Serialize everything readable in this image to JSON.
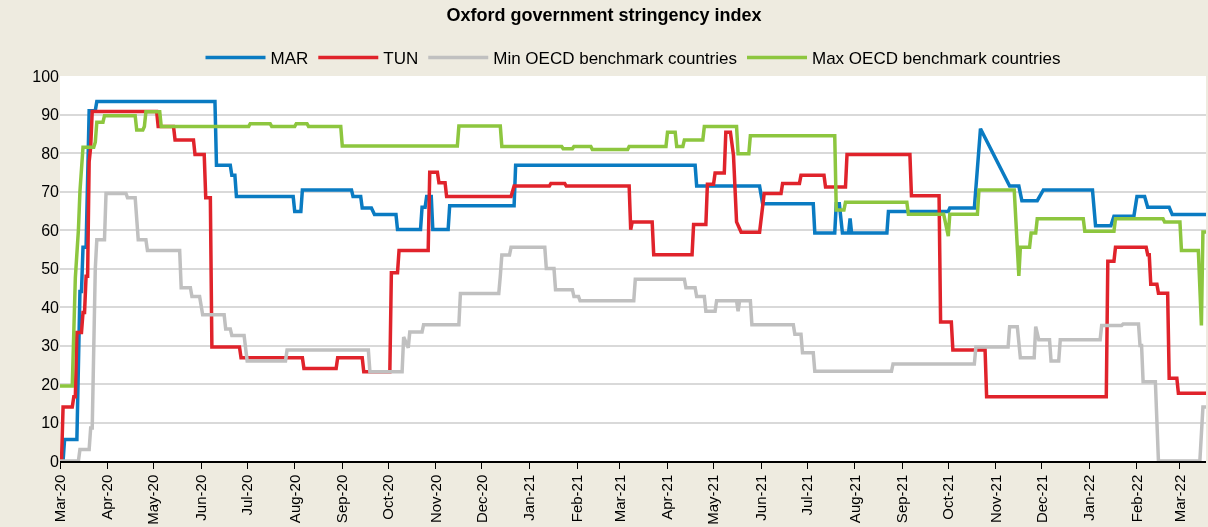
{
  "chart_data": {
    "type": "line",
    "title": "Oxford government stringency index",
    "xlim": [
      "2020-03-01",
      "2022-03-18"
    ],
    "xticks": [
      {
        "value": "2020-03-01",
        "label": "Mar-20"
      },
      {
        "value": "2020-04-01",
        "label": "Apr-20"
      },
      {
        "value": "2020-05-01",
        "label": "May-20"
      },
      {
        "value": "2020-06-01",
        "label": "Jun-20"
      },
      {
        "value": "2020-07-01",
        "label": "Jul-20"
      },
      {
        "value": "2020-08-01",
        "label": "Aug-20"
      },
      {
        "value": "2020-09-01",
        "label": "Sep-20"
      },
      {
        "value": "2020-10-01",
        "label": "Oct-20"
      },
      {
        "value": "2020-11-01",
        "label": "Nov-20"
      },
      {
        "value": "2020-12-01",
        "label": "Dec-20"
      },
      {
        "value": "2021-01-01",
        "label": "Jan-21"
      },
      {
        "value": "2021-02-01",
        "label": "Feb-21"
      },
      {
        "value": "2021-03-01",
        "label": "Mar-21"
      },
      {
        "value": "2021-04-01",
        "label": "Apr-21"
      },
      {
        "value": "2021-05-01",
        "label": "May-21"
      },
      {
        "value": "2021-06-01",
        "label": "Jun-21"
      },
      {
        "value": "2021-07-01",
        "label": "Jul-21"
      },
      {
        "value": "2021-08-01",
        "label": "Aug-21"
      },
      {
        "value": "2021-09-01",
        "label": "Sep-21"
      },
      {
        "value": "2021-10-01",
        "label": "Oct-21"
      },
      {
        "value": "2021-11-01",
        "label": "Nov-21"
      },
      {
        "value": "2021-12-01",
        "label": "Dec-21"
      },
      {
        "value": "2022-01-01",
        "label": "Jan-22"
      },
      {
        "value": "2022-02-01",
        "label": "Feb-22"
      },
      {
        "value": "2022-03-01",
        "label": "Mar-22"
      }
    ],
    "ylim": [
      0,
      100
    ],
    "yticks": [
      0,
      10,
      20,
      30,
      40,
      50,
      60,
      70,
      80,
      90,
      100
    ],
    "grid": "y",
    "legend": "top",
    "series": [
      {
        "name": "MAR",
        "color": "#0a7bc2",
        "x": [
          "2020-03-03",
          "2020-03-04",
          "2020-03-12",
          "2020-03-14",
          "2020-03-15",
          "2020-03-16",
          "2020-03-18",
          "2020-03-20",
          "2020-03-24",
          "2020-03-25",
          "2020-06-10",
          "2020-06-11",
          "2020-06-20",
          "2020-06-21",
          "2020-06-23",
          "2020-06-24",
          "2020-07-31",
          "2020-08-01",
          "2020-08-05",
          "2020-08-06",
          "2020-09-07",
          "2020-09-08",
          "2020-09-13",
          "2020-09-14",
          "2020-09-20",
          "2020-09-22",
          "2020-10-06",
          "2020-10-07",
          "2020-10-22",
          "2020-10-23",
          "2020-10-25",
          "2020-10-26",
          "2020-10-29",
          "2020-10-30",
          "2020-11-09",
          "2020-11-10",
          "2020-12-22",
          "2020-12-23",
          "2021-04-19",
          "2021-04-20",
          "2021-05-31",
          "2021-06-02",
          "2021-07-05",
          "2021-07-06",
          "2021-07-19",
          "2021-07-20",
          "2021-07-22",
          "2021-07-24",
          "2021-07-28",
          "2021-07-29",
          "2021-07-30",
          "2021-08-22",
          "2021-08-23",
          "2021-10-01",
          "2021-10-02",
          "2021-10-18",
          "2021-10-22",
          "2021-11-10",
          "2021-11-16",
          "2021-11-18",
          "2021-11-28",
          "2021-12-02",
          "2022-01-03",
          "2022-01-05",
          "2022-01-15",
          "2022-01-17",
          "2022-01-30",
          "2022-02-01",
          "2022-02-06",
          "2022-02-08",
          "2022-02-22",
          "2022-02-24",
          "2022-03-18"
        ],
        "values": [
          0,
          5.6,
          5.6,
          44,
          44,
          55.5,
          55.5,
          91,
          91,
          93.4,
          93.4,
          76.8,
          76.8,
          74.2,
          74.2,
          68.7,
          68.7,
          64.8,
          64.8,
          70.4,
          70.4,
          68.7,
          68.7,
          65.7,
          65.7,
          64,
          64,
          60.1,
          60.1,
          65.9,
          65.9,
          68.7,
          68.7,
          60.1,
          60.1,
          66.3,
          66.3,
          76.8,
          76.8,
          71.4,
          71.4,
          66.8,
          66.8,
          59.2,
          59.2,
          66.8,
          66.8,
          59.2,
          59.2,
          63,
          59.2,
          59.2,
          64.8,
          64.8,
          65.7,
          65.7,
          86.3,
          71.4,
          71.4,
          67.6,
          67.6,
          70.4,
          70.4,
          61.1,
          61.1,
          63.6,
          63.6,
          68.7,
          68.7,
          65.9,
          65.9,
          64,
          64
        ]
      },
      {
        "name": "TUN",
        "color": "#e0232b",
        "x": [
          "2020-03-02",
          "2020-03-03",
          "2020-03-09",
          "2020-03-10",
          "2020-03-11",
          "2020-03-12",
          "2020-03-15",
          "2020-03-16",
          "2020-03-17",
          "2020-03-18",
          "2020-03-19",
          "2020-03-20",
          "2020-03-21",
          "2020-03-22",
          "2020-05-03",
          "2020-05-04",
          "2020-05-14",
          "2020-05-15",
          "2020-05-27",
          "2020-05-28",
          "2020-06-03",
          "2020-06-04",
          "2020-06-07",
          "2020-06-08",
          "2020-06-26",
          "2020-06-27",
          "2020-08-06",
          "2020-08-07",
          "2020-08-28",
          "2020-08-29",
          "2020-09-14",
          "2020-09-15",
          "2020-10-02",
          "2020-10-03",
          "2020-10-07",
          "2020-10-08",
          "2020-10-27",
          "2020-10-28",
          "2020-11-02",
          "2020-11-03",
          "2020-11-07",
          "2020-11-08",
          "2020-12-20",
          "2020-12-22",
          "2021-01-14",
          "2021-01-15",
          "2021-01-24",
          "2021-01-25",
          "2021-03-07",
          "2021-03-08",
          "2021-03-09",
          "2021-03-22",
          "2021-03-23",
          "2021-04-17",
          "2021-04-18",
          "2021-04-26",
          "2021-04-27",
          "2021-05-01",
          "2021-05-02",
          "2021-05-08",
          "2021-05-09",
          "2021-05-12",
          "2021-05-14",
          "2021-05-16",
          "2021-05-19",
          "2021-05-31",
          "2021-06-03",
          "2021-06-14",
          "2021-06-15",
          "2021-06-26",
          "2021-06-27",
          "2021-07-12",
          "2021-07-13",
          "2021-07-26",
          "2021-07-27",
          "2021-09-06",
          "2021-09-07",
          "2021-09-25",
          "2021-09-26",
          "2021-10-03",
          "2021-10-04",
          "2021-10-25",
          "2021-10-26",
          "2022-01-12",
          "2022-01-13",
          "2022-01-17",
          "2022-01-18",
          "2022-02-07",
          "2022-02-08",
          "2022-02-09",
          "2022-02-10",
          "2022-02-14",
          "2022-02-15",
          "2022-02-21",
          "2022-02-22",
          "2022-02-27",
          "2022-02-28",
          "2022-03-18"
        ],
        "values": [
          0,
          14,
          14,
          16.7,
          16.7,
          33.4,
          33.4,
          38.6,
          38.6,
          48,
          48,
          77.7,
          81.5,
          90.8,
          90.8,
          86.9,
          86.9,
          83.4,
          83.4,
          79.6,
          79.6,
          68.4,
          68.4,
          29.6,
          29.6,
          26.8,
          26.8,
          24,
          24,
          26.8,
          26.8,
          23.2,
          23.2,
          48.9,
          48.9,
          54.7,
          54.7,
          75,
          75,
          72.3,
          72.3,
          68.7,
          68.7,
          71.4,
          71.4,
          72.1,
          72.1,
          71.4,
          71.4,
          60.1,
          62.1,
          62.1,
          53.6,
          53.6,
          61.4,
          61.4,
          71.9,
          71.9,
          74.8,
          74.8,
          85.4,
          85.4,
          79.4,
          62.1,
          59.4,
          59.4,
          69.5,
          69.5,
          72.1,
          72.1,
          74.2,
          74.2,
          71.2,
          71.2,
          79.6,
          79.6,
          68.9,
          68.9,
          36.1,
          36.1,
          28.8,
          28.8,
          16.7,
          16.7,
          51.9,
          51.9,
          55.5,
          55.5,
          53.6,
          53.6,
          45.9,
          45.9,
          43.6,
          43.6,
          21.5,
          21.5,
          17.6,
          17.6
        ]
      },
      {
        "name": "Min OECD benchmark countries",
        "color": "#c0c0c0",
        "x": [
          "2020-03-01",
          "2020-03-13",
          "2020-03-14",
          "2020-03-20",
          "2020-03-21",
          "2020-03-22",
          "2020-03-24",
          "2020-03-25",
          "2020-03-30",
          "2020-03-31",
          "2020-04-13",
          "2020-04-14",
          "2020-04-19",
          "2020-04-21",
          "2020-04-26",
          "2020-04-27",
          "2020-05-18",
          "2020-05-19",
          "2020-05-25",
          "2020-05-26",
          "2020-05-31",
          "2020-06-02",
          "2020-06-16",
          "2020-06-17",
          "2020-06-20",
          "2020-06-21",
          "2020-06-29",
          "2020-07-01",
          "2020-07-26",
          "2020-07-27",
          "2020-09-18",
          "2020-09-19",
          "2020-10-10",
          "2020-10-11",
          "2020-10-14",
          "2020-10-15",
          "2020-10-23",
          "2020-10-24",
          "2020-11-16",
          "2020-11-17",
          "2020-12-12",
          "2020-12-13",
          "2020-12-14",
          "2020-12-19",
          "2020-12-20",
          "2021-01-11",
          "2021-01-12",
          "2021-01-17",
          "2021-01-18",
          "2021-01-29",
          "2021-01-30",
          "2021-02-02",
          "2021-02-03",
          "2021-03-10",
          "2021-03-11",
          "2021-04-12",
          "2021-04-13",
          "2021-04-19",
          "2021-04-20",
          "2021-04-25",
          "2021-04-26",
          "2021-05-02",
          "2021-05-03",
          "2021-05-16",
          "2021-05-17",
          "2021-05-18",
          "2021-05-25",
          "2021-05-26",
          "2021-06-22",
          "2021-06-23",
          "2021-06-27",
          "2021-06-28",
          "2021-07-05",
          "2021-07-06",
          "2021-08-25",
          "2021-08-26",
          "2021-10-18",
          "2021-10-19",
          "2021-11-09",
          "2021-11-10",
          "2021-11-15",
          "2021-11-17",
          "2021-11-26",
          "2021-11-27",
          "2021-11-29",
          "2021-12-06",
          "2021-12-07",
          "2021-12-12",
          "2021-12-13",
          "2022-01-08",
          "2022-01-09",
          "2022-01-22",
          "2022-01-23",
          "2022-02-02",
          "2022-02-03",
          "2022-02-04",
          "2022-02-05",
          "2022-02-13",
          "2022-02-15",
          "2022-03-14",
          "2022-03-16",
          "2022-03-18"
        ],
        "values": [
          0,
          0,
          3,
          3,
          8.6,
          8.6,
          50,
          57.5,
          57.5,
          69.5,
          69.5,
          68.4,
          68.4,
          57.5,
          57.5,
          54.7,
          54.7,
          45,
          45,
          42.7,
          42.7,
          38,
          38,
          34.3,
          34.3,
          32.6,
          32.6,
          26,
          26,
          28.8,
          28.8,
          23.2,
          23.2,
          32.2,
          29.4,
          33.5,
          33.5,
          35.4,
          35.4,
          43.5,
          43.5,
          48,
          53.5,
          53.5,
          55.5,
          55.5,
          50,
          50,
          44.5,
          44.5,
          42.7,
          42.7,
          41.6,
          41.6,
          47.2,
          47.2,
          45,
          45,
          42.7,
          42.7,
          38.9,
          38.9,
          41.6,
          41.6,
          38.9,
          41.6,
          41.6,
          35.4,
          35.4,
          32.9,
          32.9,
          28.1,
          28.1,
          23.3,
          23.3,
          25.2,
          25.2,
          29.6,
          29.6,
          34.9,
          34.9,
          26.8,
          26.8,
          34.9,
          31.5,
          31.5,
          26,
          26,
          31.5,
          31.5,
          35.2,
          35.2,
          35.6,
          35.6,
          30,
          30,
          20.6,
          20.6,
          0,
          0,
          14,
          14
        ]
      },
      {
        "name": "Max OECD benchmark countries",
        "color": "#8dc63f",
        "x": [
          "2020-03-01",
          "2020-03-09",
          "2020-03-11",
          "2020-03-13",
          "2020-03-14",
          "2020-03-16",
          "2020-03-23",
          "2020-03-24",
          "2020-03-25",
          "2020-03-29",
          "2020-03-30",
          "2020-04-19",
          "2020-04-20",
          "2020-04-24",
          "2020-04-25",
          "2020-04-26",
          "2020-05-05",
          "2020-05-06",
          "2020-07-02",
          "2020-07-03",
          "2020-07-16",
          "2020-07-17",
          "2020-08-01",
          "2020-08-02",
          "2020-08-09",
          "2020-08-10",
          "2020-08-31",
          "2020-09-01",
          "2020-11-15",
          "2020-11-16",
          "2020-12-13",
          "2020-12-14",
          "2021-01-22",
          "2021-01-23",
          "2021-01-29",
          "2021-01-30",
          "2021-02-10",
          "2021-02-11",
          "2021-03-06",
          "2021-03-07",
          "2021-03-31",
          "2021-04-01",
          "2021-04-06",
          "2021-04-07",
          "2021-04-11",
          "2021-04-12",
          "2021-04-24",
          "2021-04-25",
          "2021-05-16",
          "2021-05-17",
          "2021-05-24",
          "2021-05-25",
          "2021-07-19",
          "2021-07-20",
          "2021-07-25",
          "2021-07-26",
          "2021-09-04",
          "2021-09-05",
          "2021-09-28",
          "2021-10-01",
          "2021-10-02",
          "2021-10-20",
          "2021-10-21",
          "2021-11-13",
          "2021-11-16",
          "2021-11-17",
          "2021-11-23",
          "2021-11-24",
          "2021-11-27",
          "2021-11-28",
          "2021-12-28",
          "2021-12-29",
          "2022-01-17",
          "2022-01-18",
          "2022-02-18",
          "2022-02-19",
          "2022-03-01",
          "2022-03-02",
          "2022-03-13",
          "2022-03-15",
          "2022-03-16",
          "2022-03-18"
        ],
        "values": [
          19.5,
          19.5,
          47.6,
          60,
          70,
          81.5,
          81.5,
          82.8,
          88,
          88,
          89.7,
          89.7,
          86,
          86,
          86.9,
          90.7,
          90.7,
          86.9,
          86.9,
          87.6,
          87.6,
          86.9,
          86.9,
          87.6,
          87.6,
          86.9,
          86.9,
          81.8,
          81.8,
          87,
          87,
          81.7,
          81.7,
          81.1,
          81.1,
          81.7,
          81.7,
          80.9,
          80.9,
          81.7,
          81.7,
          85.4,
          85.4,
          81.7,
          81.7,
          83.4,
          83.4,
          86.9,
          86.9,
          79.8,
          79.8,
          84.5,
          84.5,
          65.2,
          65.2,
          67.2,
          67.2,
          64.1,
          64.1,
          58.4,
          64.1,
          64.1,
          70.4,
          70.4,
          48.1,
          55.5,
          55.5,
          59.2,
          59.2,
          62.9,
          62.9,
          59.7,
          59.7,
          62.9,
          62.9,
          62.1,
          62.1,
          54.7,
          54.7,
          35.2,
          59.5,
          59.5
        ]
      }
    ]
  }
}
